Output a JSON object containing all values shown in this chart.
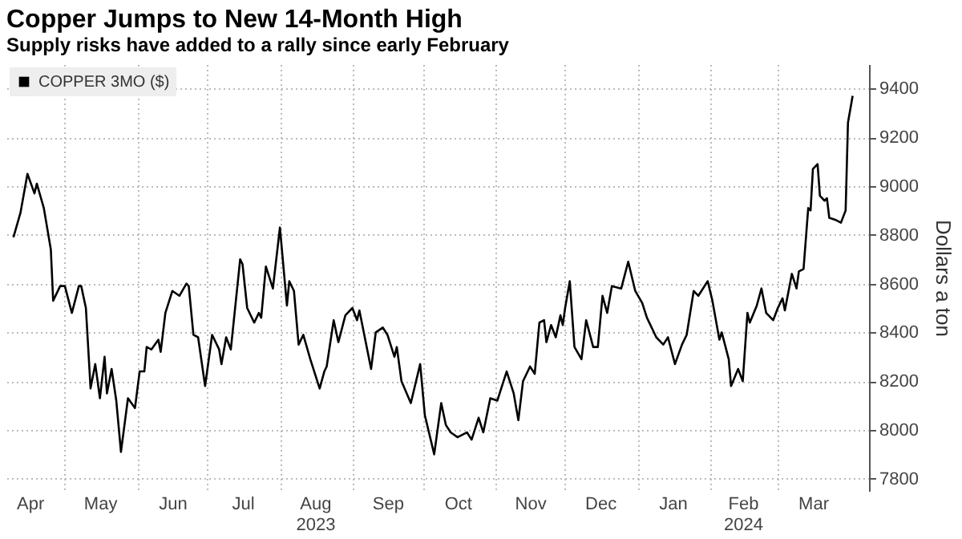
{
  "chart_data": {
    "type": "line",
    "title": "Copper Jumps to New 14-Month High",
    "subtitle": "Supply risks have added to a rally since early February",
    "ylabel": "Dollars a ton",
    "legend": "top left",
    "grid": true,
    "xlim": [
      "2023-04-06",
      "2024-04-09"
    ],
    "ylim": [
      7750,
      9500
    ],
    "yticks": [
      7800,
      8000,
      8200,
      8400,
      8600,
      8800,
      9000,
      9200,
      9400
    ],
    "xticks": [
      {
        "value": "2023-04-16",
        "label": "Apr"
      },
      {
        "value": "2023-05-01",
        "label": null
      },
      {
        "value": "2023-05-16",
        "label": "May"
      },
      {
        "value": "2023-06-01",
        "label": null
      },
      {
        "value": "2023-06-16",
        "label": "Jun"
      },
      {
        "value": "2023-07-01",
        "label": null
      },
      {
        "value": "2023-07-16",
        "label": "Jul"
      },
      {
        "value": "2023-08-01",
        "label": null
      },
      {
        "value": "2023-08-16",
        "label": "Aug\n2023"
      },
      {
        "value": "2023-09-01",
        "label": null
      },
      {
        "value": "2023-09-16",
        "label": "Sep"
      },
      {
        "value": "2023-10-01",
        "label": null
      },
      {
        "value": "2023-10-16",
        "label": "Oct"
      },
      {
        "value": "2023-11-01",
        "label": null
      },
      {
        "value": "2023-11-16",
        "label": "Nov"
      },
      {
        "value": "2023-12-01",
        "label": null
      },
      {
        "value": "2023-12-16",
        "label": "Dec"
      },
      {
        "value": "2024-01-01",
        "label": null
      },
      {
        "value": "2024-01-16",
        "label": "Jan"
      },
      {
        "value": "2024-02-01",
        "label": null
      },
      {
        "value": "2024-02-15",
        "label": "Feb\n2024"
      },
      {
        "value": "2024-03-01",
        "label": null
      },
      {
        "value": "2024-03-16",
        "label": "Mar"
      }
    ],
    "x": [
      "2023-04-09",
      "2023-04-12",
      "2023-04-15",
      "2023-04-18",
      "2023-04-19",
      "2023-04-22",
      "2023-04-25",
      "2023-04-26",
      "2023-04-29",
      "2023-05-01",
      "2023-05-04",
      "2023-05-07",
      "2023-05-08",
      "2023-05-10",
      "2023-05-12",
      "2023-05-14",
      "2023-05-16",
      "2023-05-18",
      "2023-05-19",
      "2023-05-21",
      "2023-05-23",
      "2023-05-25",
      "2023-05-28",
      "2023-05-31",
      "2023-06-02",
      "2023-06-04",
      "2023-06-05",
      "2023-06-07",
      "2023-06-10",
      "2023-06-11",
      "2023-06-13",
      "2023-06-16",
      "2023-06-19",
      "2023-06-22",
      "2023-06-23",
      "2023-06-25",
      "2023-06-27",
      "2023-06-30",
      "2023-07-03",
      "2023-07-06",
      "2023-07-07",
      "2023-07-09",
      "2023-07-11",
      "2023-07-15",
      "2023-07-16",
      "2023-07-18",
      "2023-07-21",
      "2023-07-23",
      "2023-07-24",
      "2023-07-26",
      "2023-07-29",
      "2023-08-01",
      "2023-08-04",
      "2023-08-05",
      "2023-08-07",
      "2023-08-09",
      "2023-08-11",
      "2023-08-14",
      "2023-08-18",
      "2023-08-20",
      "2023-08-21",
      "2023-08-24",
      "2023-08-26",
      "2023-08-29",
      "2023-09-01",
      "2023-09-03",
      "2023-09-04",
      "2023-09-09",
      "2023-09-11",
      "2023-09-14",
      "2023-09-16",
      "2023-09-19",
      "2023-09-20",
      "2023-09-22",
      "2023-09-26",
      "2023-09-30",
      "2023-10-02",
      "2023-10-06",
      "2023-10-09",
      "2023-10-11",
      "2023-10-13",
      "2023-10-16",
      "2023-10-18",
      "2023-10-20",
      "2023-10-22",
      "2023-10-25",
      "2023-10-27",
      "2023-10-30",
      "2023-11-02",
      "2023-11-03",
      "2023-11-06",
      "2023-11-09",
      "2023-11-11",
      "2023-11-13",
      "2023-11-16",
      "2023-11-18",
      "2023-11-20",
      "2023-11-22",
      "2023-11-23",
      "2023-11-25",
      "2023-11-27",
      "2023-11-29",
      "2023-11-30",
      "2023-12-01",
      "2023-12-03",
      "2023-12-05",
      "2023-12-08",
      "2023-12-10",
      "2023-12-13",
      "2023-12-15",
      "2023-12-17",
      "2023-12-19",
      "2023-12-21",
      "2023-12-25",
      "2023-12-28",
      "2023-12-31",
      "2024-01-03",
      "2024-01-05",
      "2024-01-09",
      "2024-01-12",
      "2024-01-14",
      "2024-01-17",
      "2024-01-20",
      "2024-01-22",
      "2024-01-25",
      "2024-01-27",
      "2024-01-31",
      "2024-02-02",
      "2024-02-05",
      "2024-02-06",
      "2024-02-09",
      "2024-02-10",
      "2024-02-13",
      "2024-02-15",
      "2024-02-17",
      "2024-02-18",
      "2024-02-21",
      "2024-02-23",
      "2024-02-25",
      "2024-02-28",
      "2024-03-01",
      "2024-03-03",
      "2024-03-04",
      "2024-03-07",
      "2024-03-09",
      "2024-03-10",
      "2024-03-12",
      "2024-03-14",
      "2024-03-15",
      "2024-03-16",
      "2024-03-18",
      "2024-03-19",
      "2024-03-21",
      "2024-03-22",
      "2024-03-23",
      "2024-03-26",
      "2024-03-28",
      "2024-03-30",
      "2024-03-31",
      "2024-04-02"
    ],
    "series": [
      {
        "name": "COPPER 3MO ($)",
        "color": "#000000",
        "values": [
          8790,
          8890,
          9050,
          8970,
          9010,
          8910,
          8740,
          8530,
          8590,
          8590,
          8480,
          8590,
          8590,
          8500,
          8170,
          8270,
          8130,
          8300,
          8150,
          8250,
          8120,
          7910,
          8130,
          8090,
          8240,
          8240,
          8340,
          8330,
          8370,
          8320,
          8480,
          8570,
          8550,
          8600,
          8590,
          8390,
          8380,
          8180,
          8390,
          8330,
          8270,
          8380,
          8330,
          8700,
          8680,
          8500,
          8440,
          8480,
          8460,
          8670,
          8580,
          8830,
          8510,
          8610,
          8570,
          8350,
          8390,
          8290,
          8170,
          8240,
          8260,
          8450,
          8360,
          8470,
          8500,
          8450,
          8490,
          8250,
          8400,
          8420,
          8390,
          8300,
          8340,
          8200,
          8110,
          8270,
          8060,
          7900,
          8110,
          8020,
          7990,
          7970,
          7980,
          7990,
          7960,
          8050,
          7990,
          8130,
          8120,
          8150,
          8240,
          8150,
          8040,
          8200,
          8260,
          8230,
          8440,
          8450,
          8360,
          8430,
          8380,
          8470,
          8430,
          8500,
          8610,
          8340,
          8290,
          8450,
          8340,
          8340,
          8550,
          8480,
          8590,
          8580,
          8690,
          8570,
          8520,
          8460,
          8380,
          8350,
          8380,
          8270,
          8350,
          8390,
          8570,
          8550,
          8610,
          8530,
          8370,
          8400,
          8290,
          8180,
          8250,
          8200,
          8480,
          8440,
          8510,
          8580,
          8480,
          8450,
          8500,
          8540,
          8490,
          8640,
          8580,
          8650,
          8660,
          8910,
          8900,
          9070,
          9090,
          8960,
          8940,
          8950,
          8870,
          8860,
          8850,
          8900,
          9260,
          9370
        ]
      }
    ]
  }
}
